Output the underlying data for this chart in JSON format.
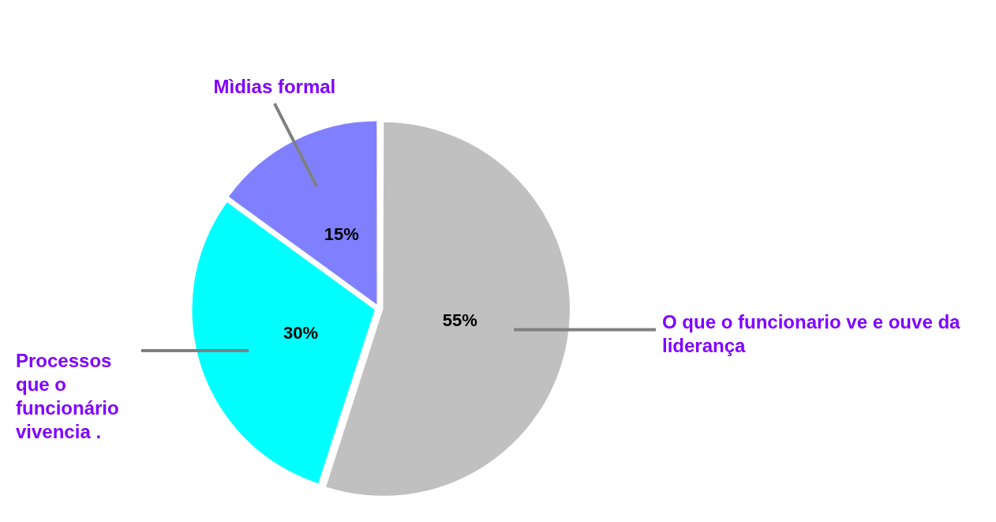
{
  "chart_data": {
    "type": "pie",
    "legend": false,
    "categories": [
      "O que o funcionario ve e ouve da liderança",
      "Processos que o funcionário vivencia .",
      "Mìdias formal"
    ],
    "values": [
      55,
      30,
      15
    ],
    "colors": [
      "#c0c0c0",
      "#00ffff",
      "#8080ff"
    ],
    "value_labels": [
      "55%",
      "30%",
      "15%"
    ]
  }
}
